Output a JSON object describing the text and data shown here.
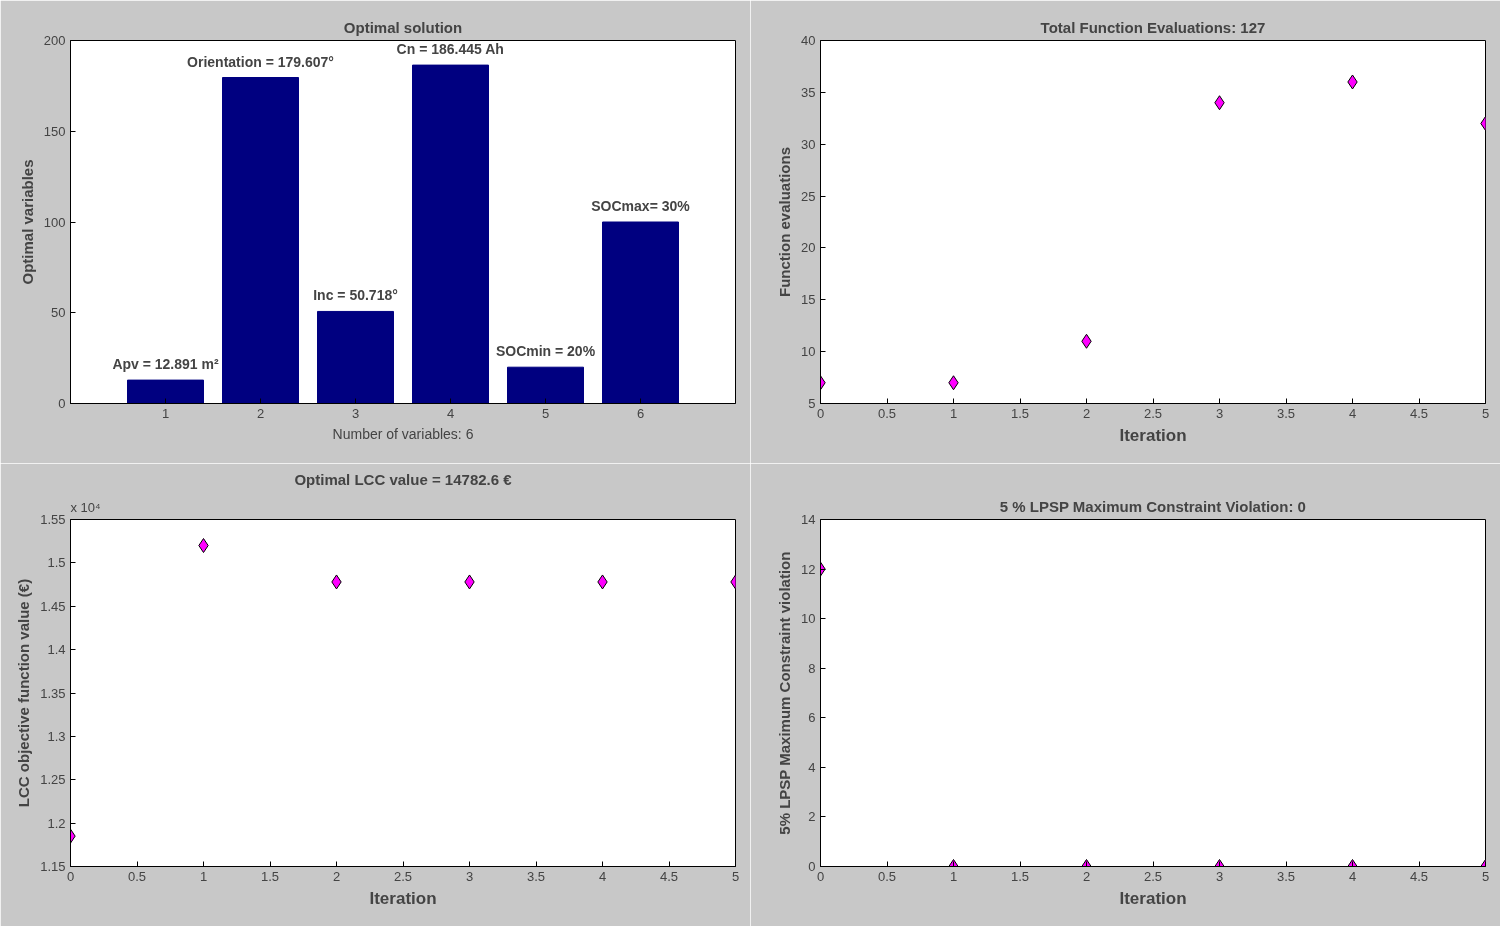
{
  "chart_data": [
    {
      "type": "bar",
      "title": "Optimal solution",
      "xlabel": "Number of variables: 6",
      "ylabel": "Optimal variables",
      "categories": [
        "1",
        "2",
        "3",
        "4",
        "5",
        "6"
      ],
      "values": [
        12.891,
        179.607,
        50.718,
        186.445,
        20,
        100
      ],
      "color": "#000080",
      "ylim": [
        0,
        200
      ],
      "yticks": [
        0,
        50,
        100,
        150,
        200
      ],
      "grid": false,
      "annotations": [
        {
          "text": "Apv = 12.891 m²",
          "x": "1",
          "y": 12.891
        },
        {
          "text": "Orientation = 179.607°",
          "x": "2",
          "y": 179.607
        },
        {
          "text": "Inc = 50.718°",
          "x": "3",
          "y": 50.718
        },
        {
          "text": "Cn = 186.445 Ah",
          "x": "4",
          "y": 186.445
        },
        {
          "text": "SOCmin = 20%",
          "x": "5",
          "y": 20
        },
        {
          "text": "SOCmax= 30%",
          "x": "6",
          "y": 100
        }
      ]
    },
    {
      "type": "scatter",
      "title": "Total Function Evaluations: 127",
      "xlabel": "Iteration",
      "ylabel": "Function evaluations",
      "x": [
        0,
        1,
        2,
        3,
        4,
        5
      ],
      "values": [
        7,
        7,
        11,
        34,
        36,
        32
      ],
      "color": "#ff00ff",
      "marker": "diamond",
      "xlim": [
        0,
        5
      ],
      "xticks": [
        0,
        0.5,
        1,
        1.5,
        2,
        2.5,
        3,
        3.5,
        4,
        4.5,
        5
      ],
      "ylim": [
        5,
        40
      ],
      "yticks": [
        5,
        10,
        15,
        20,
        25,
        30,
        35,
        40
      ],
      "grid": false
    },
    {
      "type": "scatter",
      "title": "Optimal LCC value = 14782.6 €",
      "xlabel": "Iteration",
      "ylabel": "LCC objective function value (€)",
      "x": [
        0,
        1,
        2,
        3,
        4,
        5
      ],
      "values": [
        1.185,
        1.52,
        1.478,
        1.478,
        1.478,
        1.478
      ],
      "color": "#ff00ff",
      "marker": "diamond",
      "xlim": [
        0,
        5
      ],
      "xticks": [
        0,
        0.5,
        1,
        1.5,
        2,
        2.5,
        3,
        3.5,
        4,
        4.5,
        5
      ],
      "ylim": [
        1.15,
        1.55
      ],
      "yticks": [
        1.15,
        1.2,
        1.25,
        1.3,
        1.35,
        1.4,
        1.45,
        1.5,
        1.55
      ],
      "grid": false,
      "annotations": [
        "x 10⁴"
      ]
    },
    {
      "type": "scatter",
      "title": "5 % LPSP Maximum Constraint Violation: 0",
      "xlabel": "Iteration",
      "ylabel": "5% LPSP Maximum Constraint violation",
      "x": [
        0,
        1,
        2,
        3,
        4,
        5
      ],
      "values": [
        12,
        0,
        0,
        0,
        0,
        0
      ],
      "color": "#ff00ff",
      "marker": "diamond",
      "xlim": [
        0,
        5
      ],
      "xticks": [
        0,
        0.5,
        1,
        1.5,
        2,
        2.5,
        3,
        3.5,
        4,
        4.5,
        5
      ],
      "ylim": [
        0,
        14
      ],
      "yticks": [
        0,
        2,
        4,
        6,
        8,
        10,
        12,
        14
      ],
      "grid": false
    }
  ]
}
